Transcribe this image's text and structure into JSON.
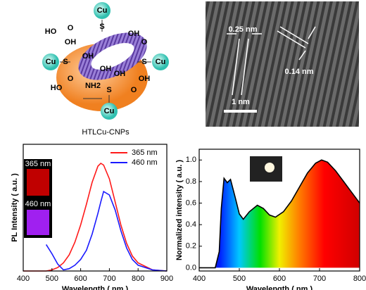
{
  "schematic": {
    "caption": "HTLCu-CNPs",
    "labels": [
      "Cu",
      "Cu",
      "Cu",
      "Cu",
      "S",
      "S",
      "S",
      "S",
      "HO",
      "OH",
      "O",
      "OH",
      "O",
      "OH",
      "OH",
      "NH2",
      "HO",
      "O",
      "OH",
      "O",
      "OH"
    ]
  },
  "tem": {
    "spacing_a": "0.25 nm",
    "spacing_b": "0.14 nm",
    "scale": "1 nm"
  },
  "chart_data": [
    {
      "type": "line",
      "xlabel": "Wavelength ( nm )",
      "ylabel": "PL Intensity ( a.u. )",
      "annotations": [
        "365 nm",
        "460 nm"
      ],
      "x": [
        400,
        450,
        480,
        500,
        520,
        540,
        560,
        580,
        600,
        620,
        640,
        660,
        670,
        680,
        700,
        720,
        740,
        760,
        780,
        800,
        850,
        900
      ],
      "series": [
        {
          "name": "365 nm",
          "color": "#ff1a1a",
          "values": [
            0,
            0,
            0,
            0.01,
            0.03,
            0.07,
            0.14,
            0.25,
            0.4,
            0.58,
            0.77,
            0.91,
            0.935,
            0.92,
            0.8,
            0.6,
            0.4,
            0.24,
            0.13,
            0.07,
            0.01,
            0
          ]
        },
        {
          "name": "460 nm",
          "color": "#1a1aff",
          "values": [
            null,
            null,
            0.23,
            0.15,
            0.06,
            0.01,
            0.02,
            0.05,
            0.1,
            0.18,
            0.32,
            0.5,
            0.6,
            0.69,
            0.66,
            0.53,
            0.35,
            0.2,
            0.1,
            0.05,
            0.01,
            0
          ]
        }
      ],
      "xlim": [
        400,
        900
      ],
      "xticks": [
        400,
        500,
        600,
        700,
        800,
        900
      ],
      "ylim": [
        0,
        1.1
      ],
      "legend": "upper right"
    },
    {
      "type": "area",
      "xlabel": "Wavelength ( nm )",
      "ylabel": "Normalized intensity ( a.u. )",
      "x": [
        400,
        440,
        450,
        455,
        462,
        470,
        478,
        490,
        500,
        510,
        525,
        545,
        560,
        575,
        590,
        610,
        630,
        650,
        670,
        690,
        705,
        720,
        740,
        760,
        780,
        800
      ],
      "values": [
        0,
        0,
        0.15,
        0.55,
        0.83,
        0.79,
        0.82,
        0.65,
        0.5,
        0.45,
        0.52,
        0.58,
        0.55,
        0.49,
        0.47,
        0.52,
        0.62,
        0.75,
        0.88,
        0.97,
        1.0,
        0.98,
        0.9,
        0.8,
        0.7,
        0.6
      ],
      "color": "#000000",
      "xlim": [
        400,
        800
      ],
      "xticks": [
        400,
        500,
        600,
        700,
        800
      ],
      "ylim": [
        -0.03,
        1.1
      ],
      "yticks": [
        {
          "value": 0,
          "label": "0.0"
        },
        0.2,
        0.4,
        0.6,
        0.8,
        {
          "value": 1,
          "label": "1.0"
        }
      ]
    }
  ]
}
